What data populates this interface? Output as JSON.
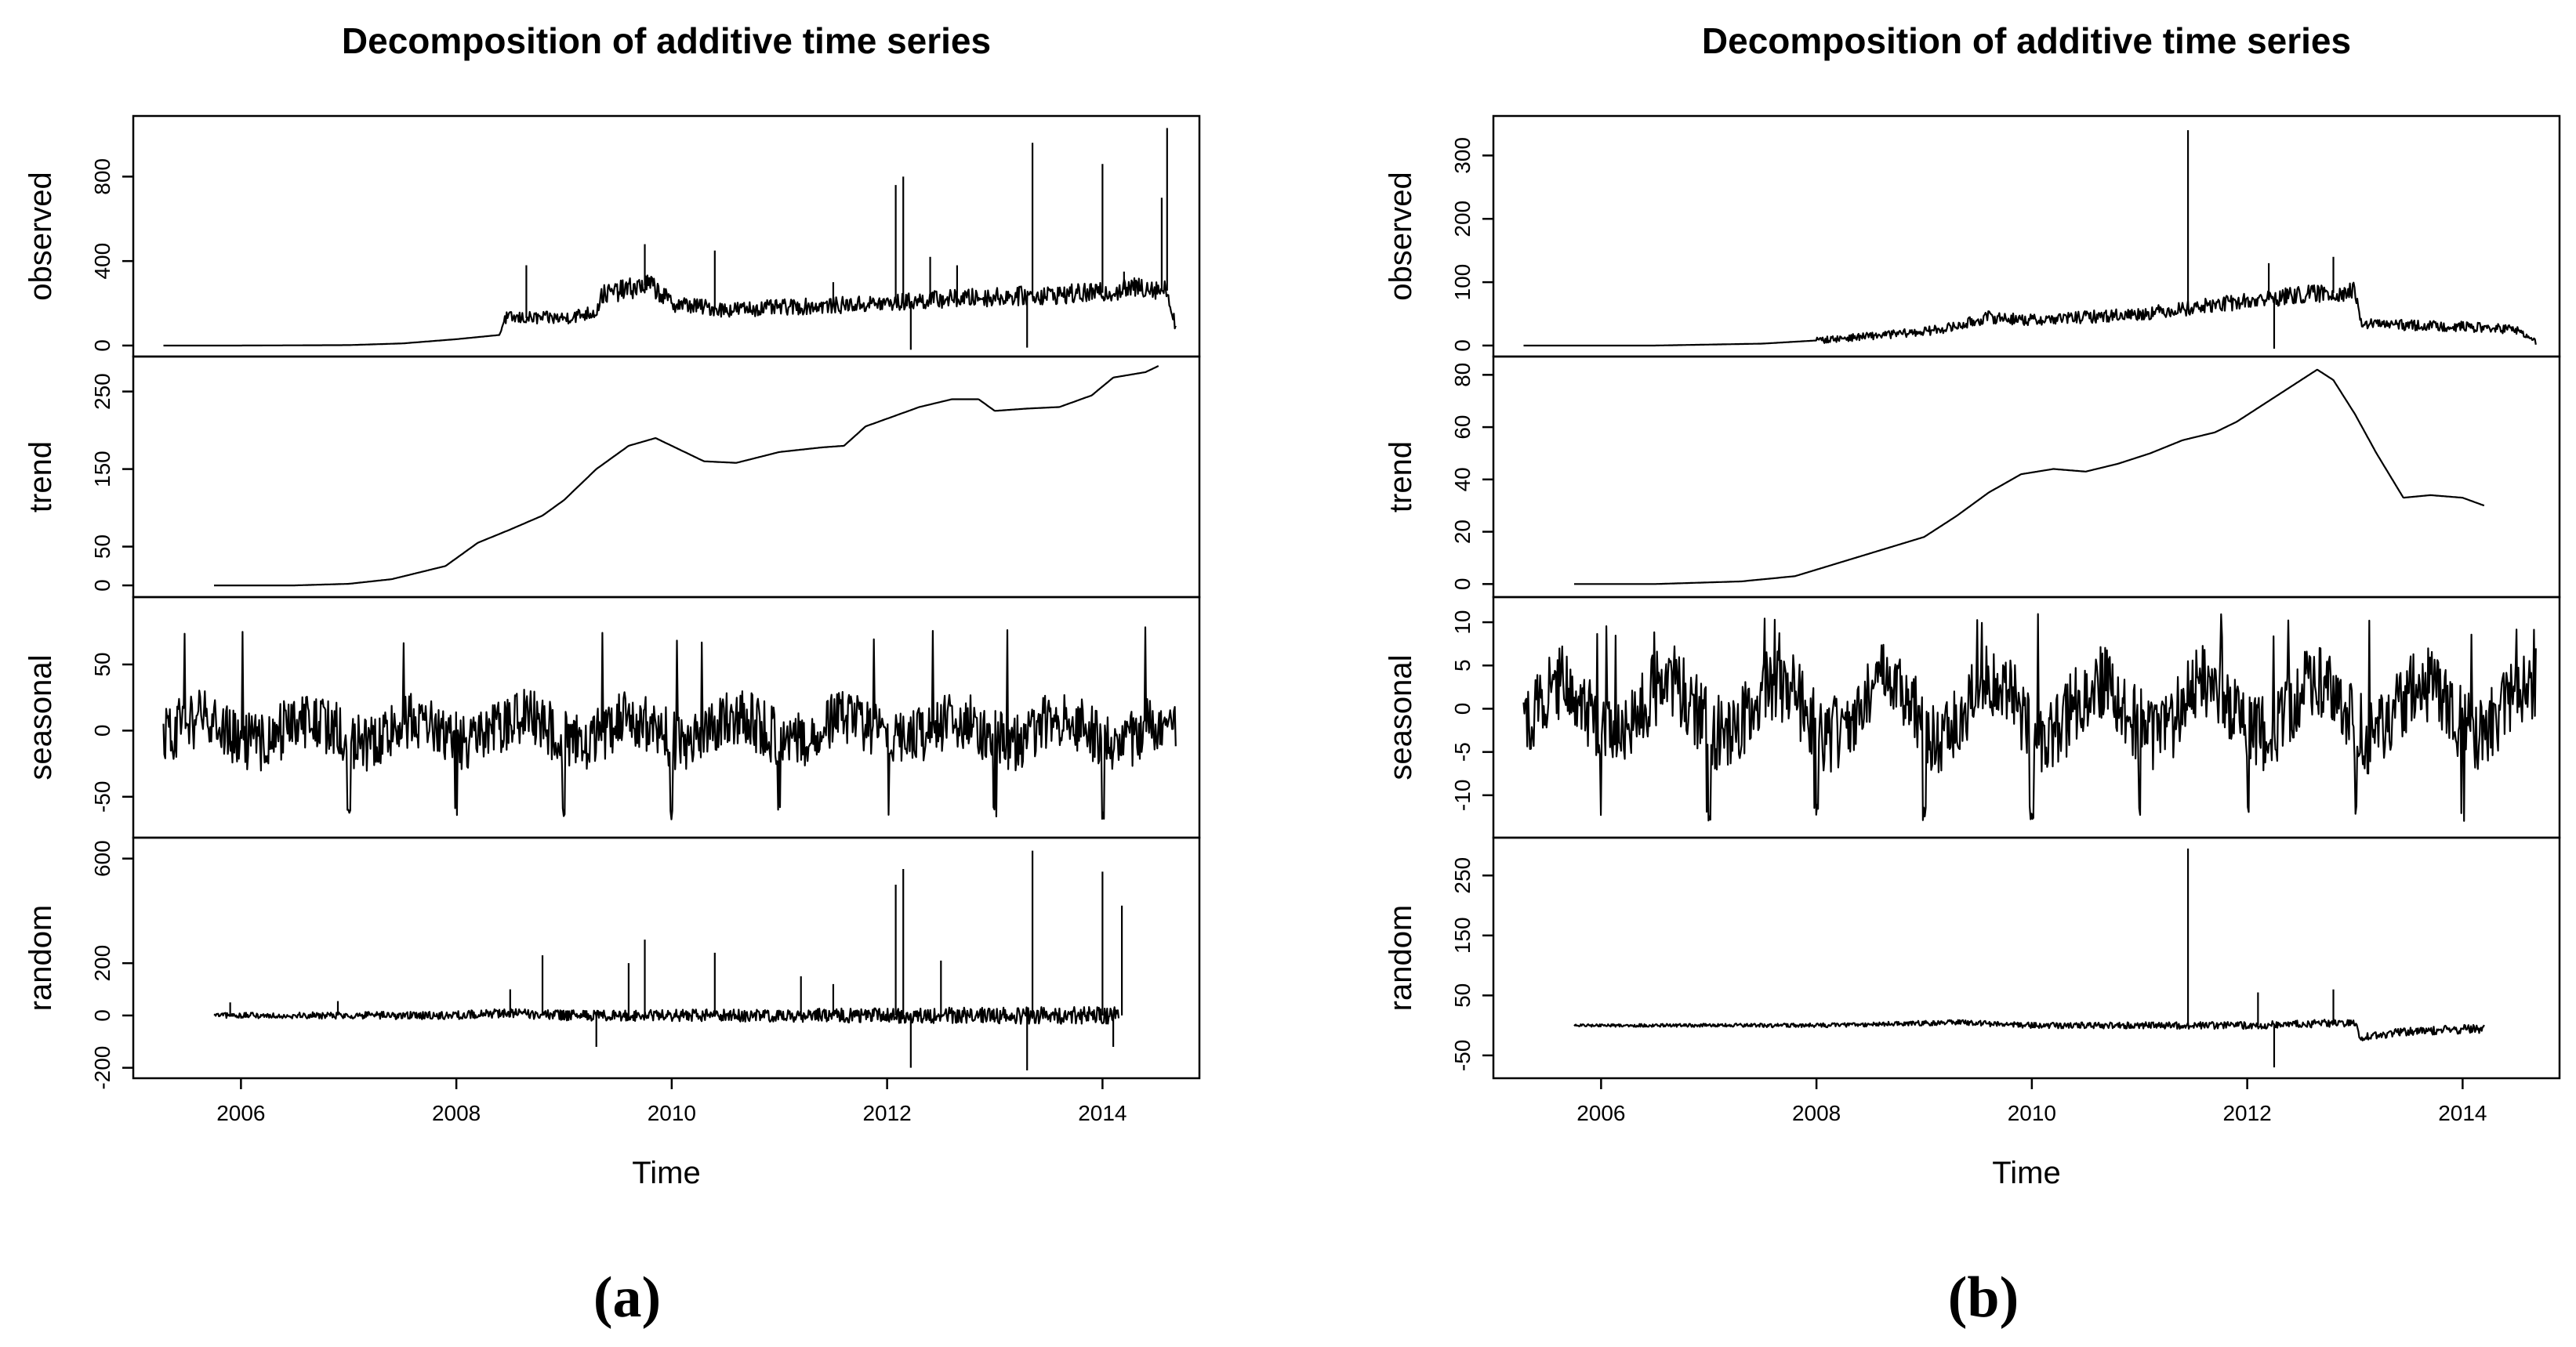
{
  "chart_data": [
    {
      "type": "line",
      "panel_caption": "(a)",
      "title": "Decomposition of additive time series",
      "xlabel": "Time",
      "xlim": [
        2005.0,
        2014.9
      ],
      "x_ticks": [
        2006,
        2008,
        2010,
        2012,
        2014
      ],
      "series_start": 2005.28,
      "series_end": 2014.68,
      "components": [
        {
          "name": "observed",
          "ylabel": "observed",
          "ylim": [
            -15,
            1050
          ],
          "yticks": [
            0,
            400,
            800
          ],
          "yticks_shown": [
            {
              "v": 0,
              "t": "0"
            },
            {
              "v": 400,
              "t": "400"
            },
            {
              "v": 800,
              "t": "800"
            }
          ],
          "knots": [
            [
              2005.28,
              0
            ],
            [
              2006,
              0
            ],
            [
              2007,
              2
            ],
            [
              2007.5,
              10
            ],
            [
              2008,
              30
            ],
            [
              2008.4,
              50
            ],
            [
              2008.45,
              130
            ],
            [
              2009,
              130
            ],
            [
              2009.3,
              160
            ],
            [
              2009.35,
              240
            ],
            [
              2009.8,
              290
            ],
            [
              2010,
              200
            ],
            [
              2010.5,
              170
            ],
            [
              2011,
              180
            ],
            [
              2011.5,
              190
            ],
            [
              2012,
              200
            ],
            [
              2012.5,
              220
            ],
            [
              2013,
              230
            ],
            [
              2013.5,
              240
            ],
            [
              2014,
              250
            ],
            [
              2014.4,
              280
            ],
            [
              2014.6,
              260
            ],
            [
              2014.68,
              90
            ]
          ],
          "noise": 32,
          "noise_start": 2008.4,
          "noise_scale_with_level": true,
          "spikes": [
            [
              2008.65,
              380
            ],
            [
              2009.75,
              480
            ],
            [
              2010.4,
              450
            ],
            [
              2011.5,
              300
            ],
            [
              2012.08,
              760
            ],
            [
              2012.15,
              800
            ],
            [
              2012.22,
              -20
            ],
            [
              2012.4,
              420
            ],
            [
              2012.65,
              380
            ],
            [
              2013.3,
              -10
            ],
            [
              2013.35,
              960
            ],
            [
              2014,
              860
            ],
            [
              2014.2,
              350
            ],
            [
              2014.6,
              1030
            ],
            [
              2014.55,
              700
            ]
          ]
        },
        {
          "name": "trend",
          "ylabel": "trend",
          "ylim": [
            -5,
            285
          ],
          "yticks_shown": [
            {
              "v": 0,
              "t": "0"
            },
            {
              "v": 50,
              "t": "50"
            },
            {
              "v": 150,
              "t": "150"
            },
            {
              "v": 250,
              "t": "250"
            }
          ],
          "knots": [
            [
              2005.75,
              0
            ],
            [
              2006.5,
              0
            ],
            [
              2007,
              2
            ],
            [
              2007.4,
              8
            ],
            [
              2007.9,
              25
            ],
            [
              2008.2,
              55
            ],
            [
              2008.5,
              72
            ],
            [
              2008.8,
              90
            ],
            [
              2009,
              110
            ],
            [
              2009.3,
              150
            ],
            [
              2009.6,
              180
            ],
            [
              2009.85,
              190
            ],
            [
              2010,
              180
            ],
            [
              2010.3,
              160
            ],
            [
              2010.6,
              158
            ],
            [
              2011,
              172
            ],
            [
              2011.4,
              178
            ],
            [
              2011.6,
              180
            ],
            [
              2011.8,
              205
            ],
            [
              2012,
              215
            ],
            [
              2012.3,
              230
            ],
            [
              2012.6,
              240
            ],
            [
              2012.85,
              240
            ],
            [
              2013,
              225
            ],
            [
              2013.3,
              228
            ],
            [
              2013.6,
              230
            ],
            [
              2013.9,
              245
            ],
            [
              2014.1,
              268
            ],
            [
              2014.4,
              275
            ],
            [
              2014.52,
              283
            ]
          ],
          "noise": 0
        },
        {
          "name": "seasonal",
          "ylabel": "seasonal",
          "ylim": [
            -75,
            95
          ],
          "yticks_shown": [
            {
              "v": -50,
              "t": "-50"
            },
            {
              "v": 0,
              "t": "0"
            },
            {
              "v": 50,
              "t": "50"
            }
          ],
          "seasonal": true,
          "season_amp": 15,
          "season_noise": 22,
          "season_dip": -68,
          "season_peak": 88
        },
        {
          "name": "random",
          "ylabel": "random",
          "ylim": [
            -210,
            650
          ],
          "yticks_shown": [
            {
              "v": -200,
              "t": "-200"
            },
            {
              "v": 0,
              "t": "0"
            },
            {
              "v": 200,
              "t": "200"
            },
            {
              "v": 600,
              "t": "600"
            }
          ],
          "knots": [
            [
              2005.75,
              0
            ],
            [
              2006.0,
              0
            ],
            [
              2008,
              0
            ],
            [
              2008.4,
              10
            ],
            [
              2009,
              0
            ],
            [
              2010,
              0
            ],
            [
              2011,
              0
            ],
            [
              2012,
              0
            ],
            [
              2013,
              0
            ],
            [
              2014.15,
              0
            ]
          ],
          "noise": 28,
          "noise_start": 2005.75,
          "noise_growth": true,
          "spikes": [
            [
              2005.9,
              50
            ],
            [
              2006.9,
              55
            ],
            [
              2008.5,
              100
            ],
            [
              2008.8,
              230
            ],
            [
              2009.3,
              -120
            ],
            [
              2009.6,
              200
            ],
            [
              2009.75,
              290
            ],
            [
              2010.4,
              240
            ],
            [
              2011.2,
              150
            ],
            [
              2011.5,
              120
            ],
            [
              2012.08,
              500
            ],
            [
              2012.15,
              560
            ],
            [
              2012.22,
              -200
            ],
            [
              2012.5,
              210
            ],
            [
              2013.3,
              -210
            ],
            [
              2013.35,
              630
            ],
            [
              2014,
              550
            ],
            [
              2014.1,
              -120
            ],
            [
              2014.18,
              420
            ]
          ]
        }
      ]
    },
    {
      "type": "line",
      "panel_caption": "(b)",
      "title": "Decomposition of additive time series",
      "xlabel": "Time",
      "xlim": [
        2005.0,
        2014.9
      ],
      "x_ticks": [
        2006,
        2008,
        2010,
        2012,
        2014
      ],
      "series_start": 2005.28,
      "series_end": 2014.68,
      "components": [
        {
          "name": "observed",
          "ylabel": "observed",
          "ylim": [
            -5,
            350
          ],
          "yticks_shown": [
            {
              "v": 0,
              "t": "0"
            },
            {
              "v": 100,
              "t": "100"
            },
            {
              "v": 200,
              "t": "200"
            },
            {
              "v": 300,
              "t": "300"
            }
          ],
          "knots": [
            [
              2005.28,
              0
            ],
            [
              2006.5,
              0
            ],
            [
              2007.5,
              3
            ],
            [
              2008,
              8
            ],
            [
              2008.5,
              15
            ],
            [
              2009,
              22
            ],
            [
              2009.3,
              30
            ],
            [
              2009.6,
              45
            ],
            [
              2010,
              40
            ],
            [
              2010.5,
              45
            ],
            [
              2011,
              50
            ],
            [
              2011.5,
              60
            ],
            [
              2012,
              70
            ],
            [
              2012.5,
              80
            ],
            [
              2013,
              85
            ],
            [
              2013.05,
              35
            ],
            [
              2013.5,
              32
            ],
            [
              2014,
              30
            ],
            [
              2014.5,
              25
            ],
            [
              2014.68,
              5
            ]
          ],
          "noise": 10,
          "noise_start": 2008.0,
          "noise_scale_with_level": true,
          "spikes": [
            [
              2011.45,
              340
            ],
            [
              2012.25,
              -5
            ],
            [
              2012.2,
              130
            ],
            [
              2012.8,
              140
            ]
          ]
        },
        {
          "name": "trend",
          "ylabel": "trend",
          "ylim": [
            -2,
            84
          ],
          "yticks_shown": [
            {
              "v": 0,
              "t": "0"
            },
            {
              "v": 20,
              "t": "20"
            },
            {
              "v": 40,
              "t": "40"
            },
            {
              "v": 60,
              "t": "60"
            },
            {
              "v": 80,
              "t": "80"
            }
          ],
          "knots": [
            [
              2005.75,
              0
            ],
            [
              2006.5,
              0
            ],
            [
              2007.3,
              1
            ],
            [
              2007.8,
              3
            ],
            [
              2008.2,
              8
            ],
            [
              2008.6,
              13
            ],
            [
              2009,
              18
            ],
            [
              2009.3,
              26
            ],
            [
              2009.6,
              35
            ],
            [
              2009.9,
              42
            ],
            [
              2010.2,
              44
            ],
            [
              2010.5,
              43
            ],
            [
              2010.8,
              46
            ],
            [
              2011.1,
              50
            ],
            [
              2011.4,
              55
            ],
            [
              2011.7,
              58
            ],
            [
              2011.9,
              62
            ],
            [
              2012.2,
              70
            ],
            [
              2012.5,
              78
            ],
            [
              2012.65,
              82
            ],
            [
              2012.8,
              78
            ],
            [
              2013,
              65
            ],
            [
              2013.2,
              50
            ],
            [
              2013.45,
              33
            ],
            [
              2013.7,
              34
            ],
            [
              2014,
              33
            ],
            [
              2014.2,
              30
            ]
          ],
          "noise": 0
        },
        {
          "name": "seasonal",
          "ylabel": "seasonal",
          "ylim": [
            -14,
            12
          ],
          "yticks_shown": [
            {
              "v": -10,
              "t": "-10"
            },
            {
              "v": -5,
              "t": "-5"
            },
            {
              "v": 0,
              "t": "0"
            },
            {
              "v": 5,
              "t": "5"
            },
            {
              "v": 10,
              "t": "10"
            }
          ],
          "seasonal": true,
          "season_amp": 5,
          "season_noise": 4.5,
          "season_dip": -13,
          "season_peak": 11
        },
        {
          "name": "random",
          "ylabel": "random",
          "ylim": [
            -75,
            300
          ],
          "yticks_shown": [
            {
              "v": -50,
              "t": "-50"
            },
            {
              "v": 50,
              "t": "50"
            },
            {
              "v": 150,
              "t": "150"
            },
            {
              "v": 250,
              "t": "250"
            }
          ],
          "knots": [
            [
              2005.75,
              0
            ],
            [
              2008,
              0
            ],
            [
              2009.3,
              5
            ],
            [
              2010,
              0
            ],
            [
              2011,
              0
            ],
            [
              2012,
              0
            ],
            [
              2013,
              5
            ],
            [
              2013.05,
              -20
            ],
            [
              2013.5,
              -10
            ],
            [
              2014.2,
              -5
            ]
          ],
          "noise": 6,
          "noise_start": 2005.75,
          "noise_growth": true,
          "spikes": [
            [
              2011.45,
              295
            ],
            [
              2012.25,
              -70
            ],
            [
              2012.1,
              55
            ],
            [
              2012.8,
              60
            ]
          ]
        }
      ]
    }
  ]
}
